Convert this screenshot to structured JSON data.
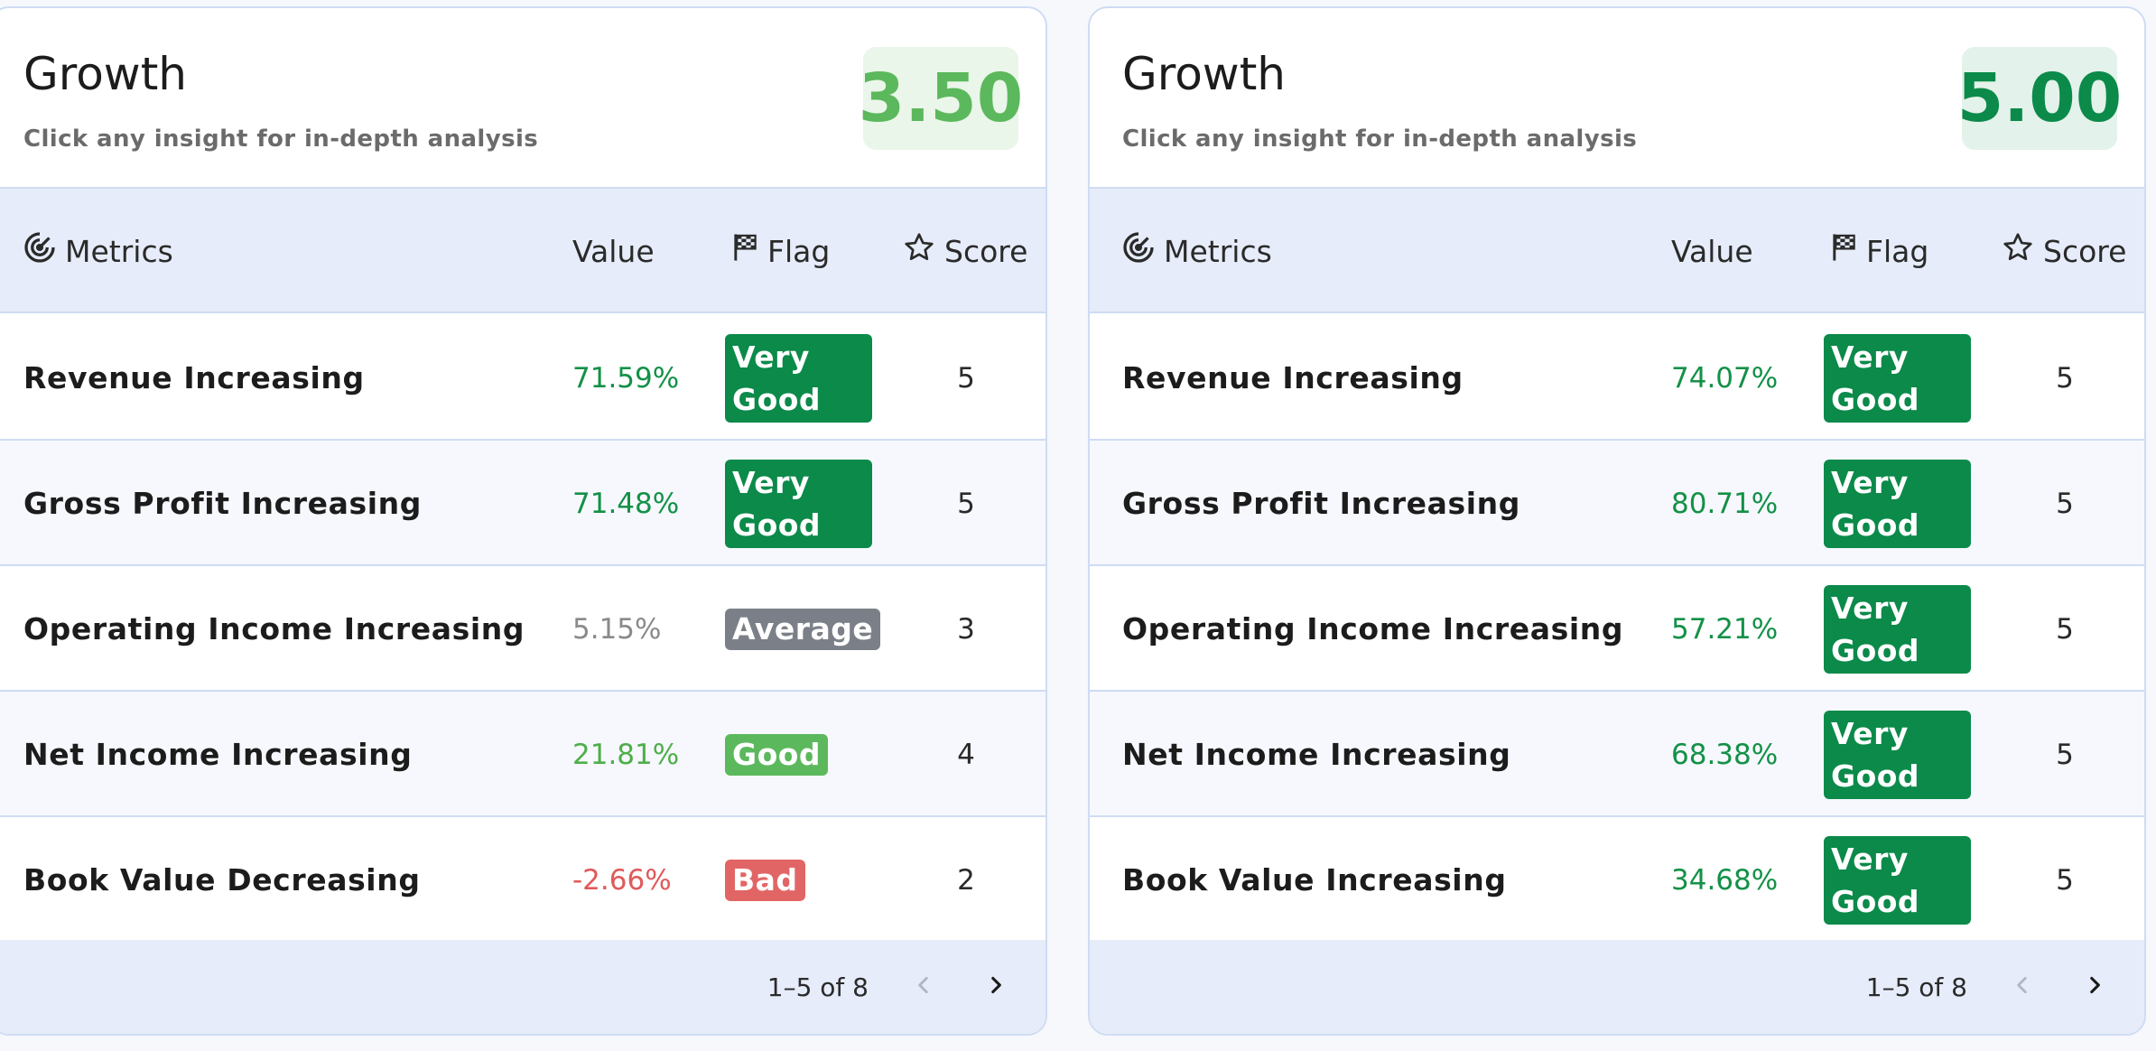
{
  "colors": {
    "very_good": "#0b8a4a",
    "good": "#5cb85c",
    "average": "#7b8088",
    "bad": "#e26565",
    "value_very_good": "#139147",
    "value_good": "#4fae4a",
    "value_average": "#8a8a8a",
    "value_bad": "#e05a5a"
  },
  "icons": {
    "metrics": "radar-target-icon",
    "flag": "checkered-flag-icon",
    "score": "star-outline-icon",
    "prev": "chevron-left-icon",
    "next": "chevron-right-icon"
  },
  "cards": [
    {
      "title": "Growth",
      "subtitle": "Click any insight for in-depth analysis",
      "score": "3.50",
      "score_color": "#5cb85c",
      "score_bg": "#eaf6ea",
      "columns": {
        "metrics": "Metrics",
        "value": "Value",
        "flag": "Flag",
        "score": "Score"
      },
      "rows": [
        {
          "metric": "Revenue Increasing",
          "value": "71.59%",
          "flag": "Very Good",
          "flag_line1": "Very",
          "flag_line2": "Good",
          "level": "very_good",
          "score": "5"
        },
        {
          "metric": "Gross Profit Increasing",
          "value": "71.48%",
          "flag": "Very Good",
          "flag_line1": "Very",
          "flag_line2": "Good",
          "level": "very_good",
          "score": "5"
        },
        {
          "metric": "Operating Income Increasing",
          "value": "5.15%",
          "flag": "Average",
          "level": "average",
          "score": "3"
        },
        {
          "metric": "Net Income Increasing",
          "value": "21.81%",
          "flag": "Good",
          "level": "good",
          "score": "4"
        },
        {
          "metric": "Book Value Decreasing",
          "value": "-2.66%",
          "flag": "Bad",
          "level": "bad",
          "score": "2"
        }
      ],
      "pagination": {
        "text": "1–5 of 8",
        "prev_disabled": true,
        "next_disabled": false
      }
    },
    {
      "title": "Growth",
      "subtitle": "Click any insight for in-depth analysis",
      "score": "5.00",
      "score_color": "#0b8a4a",
      "score_bg": "#e3f2ea",
      "columns": {
        "metrics": "Metrics",
        "value": "Value",
        "flag": "Flag",
        "score": "Score"
      },
      "rows": [
        {
          "metric": "Revenue Increasing",
          "value": "74.07%",
          "flag": "Very Good",
          "flag_line1": "Very",
          "flag_line2": "Good",
          "level": "very_good",
          "score": "5"
        },
        {
          "metric": "Gross Profit Increasing",
          "value": "80.71%",
          "flag": "Very Good",
          "flag_line1": "Very",
          "flag_line2": "Good",
          "level": "very_good",
          "score": "5"
        },
        {
          "metric": "Operating Income Increasing",
          "value": "57.21%",
          "flag": "Very Good",
          "flag_line1": "Very",
          "flag_line2": "Good",
          "level": "very_good",
          "score": "5"
        },
        {
          "metric": "Net Income Increasing",
          "value": "68.38%",
          "flag": "Very Good",
          "flag_line1": "Very",
          "flag_line2": "Good",
          "level": "very_good",
          "score": "5"
        },
        {
          "metric": "Book Value Increasing",
          "value": "34.68%",
          "flag": "Very Good",
          "flag_line1": "Very",
          "flag_line2": "Good",
          "level": "very_good",
          "score": "5"
        }
      ],
      "pagination": {
        "text": "1–5 of 8",
        "prev_disabled": true,
        "next_disabled": false
      }
    }
  ]
}
